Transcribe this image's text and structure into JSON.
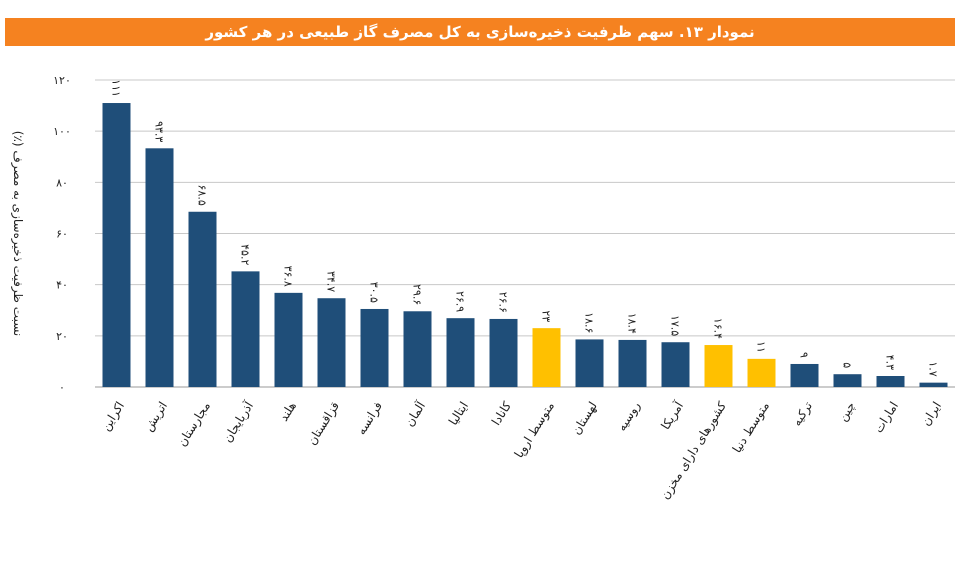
{
  "chart_data": {
    "type": "bar",
    "title": "نمودار ۱۳. سهم ظرفیت ذخیره‌سازی به کل مصرف گاز طبیعی در هر کشور",
    "ylabel": "نسبت ظرفیت ذخیره‌سازی به مصرف (٪)",
    "xlabel": "",
    "ylim": [
      0,
      120
    ],
    "yticks": [
      0,
      20,
      40,
      60,
      80,
      100,
      120
    ],
    "ytick_labels": [
      "۰",
      "۲۰",
      "۴۰",
      "۶۰",
      "۸۰",
      "۱۰۰",
      "۱۲۰"
    ],
    "grid": true,
    "categories": [
      "اکراین",
      "اتریش",
      "مجارستان",
      "آذربایجان",
      "هلند",
      "قزاقستان",
      "فرانسه",
      "آلمان",
      "ایتالیا",
      "کانادا",
      "متوسط اروپا",
      "لهستان",
      "روسیه",
      "آمریکا",
      "کشورهای دارای مخزن",
      "متوسط دنیا",
      "ترکیه",
      "چین",
      "امارات",
      "ایران"
    ],
    "values": [
      111,
      93.3,
      68.5,
      45.2,
      36.8,
      34.7,
      30.5,
      29.6,
      26.9,
      26.6,
      23,
      18.6,
      18.4,
      17.5,
      16.4,
      11,
      9,
      5,
      4.3,
      1.7
    ],
    "value_labels": [
      "۱۱۱",
      "۹۳.۳",
      "۶۸.۵",
      "۴۵.۲",
      "۳۶.۸",
      "۳۴.۷",
      "۳۰.۵",
      "۲۹.۶",
      "۲۶.۹",
      "۲۶.۶",
      "۲۳",
      "۱۸.۶",
      "۱۸.۴",
      "۱۷.۵",
      "۱۶.۴",
      "۱۱",
      "۹",
      "۵",
      "۴.۳",
      "۱.۷"
    ],
    "highlighted": [
      "متوسط اروپا",
      "کشورهای دارای مخزن",
      "متوسط دنیا"
    ],
    "colors": {
      "bar": "#1F4E79",
      "highlight": "#FFC000",
      "title_bg": "#F58220",
      "grid": "#C8C8C8"
    }
  }
}
